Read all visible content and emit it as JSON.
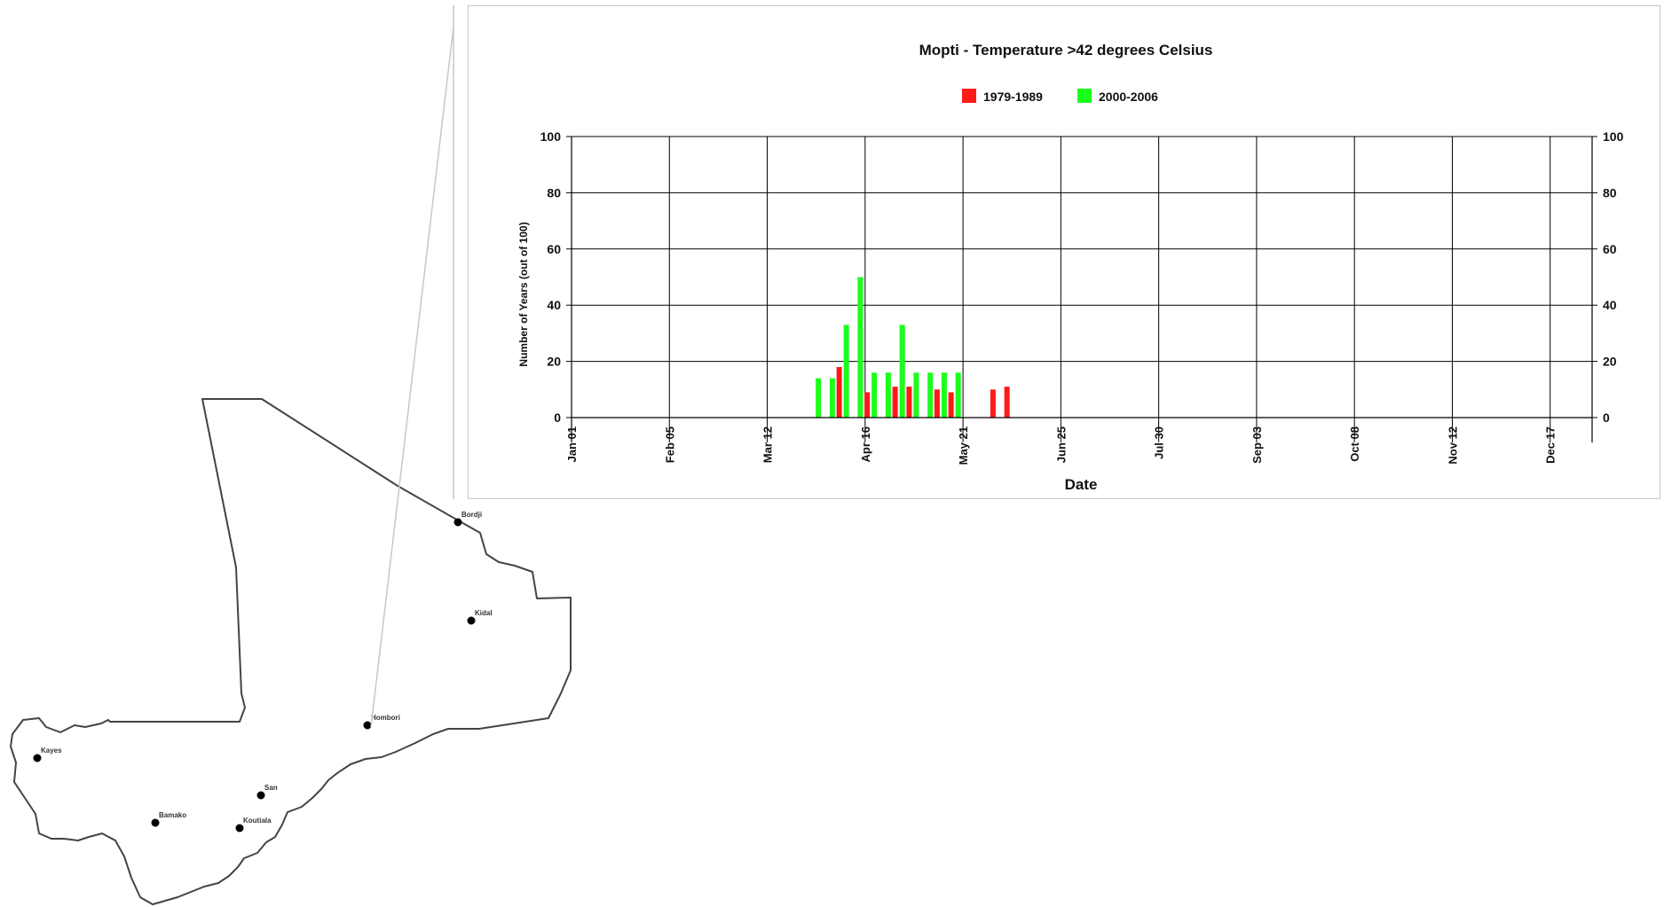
{
  "map": {
    "cities": [
      {
        "name": "Bordji"
      },
      {
        "name": "Kidal"
      },
      {
        "name": "Hombori"
      },
      {
        "name": "Kayes"
      },
      {
        "name": "San"
      },
      {
        "name": "Bamako"
      },
      {
        "name": "Koutiala"
      }
    ]
  },
  "chart_data": {
    "type": "bar",
    "title": "Mopti - Temperature >42 degrees Celsius",
    "xlabel": "Date",
    "ylabel": "Number of Years (out of 100)",
    "ylim": [
      0,
      100
    ],
    "yticks": [
      0,
      20,
      40,
      60,
      80,
      100
    ],
    "xlim": [
      "Jan 01",
      "Dec 31"
    ],
    "xticks": [
      "Jan 01",
      "Feb 05",
      "Mar 12",
      "Apr 16",
      "May 21",
      "Jun 25",
      "Jul 30",
      "Sep 03",
      "Oct 08",
      "Nov 12",
      "Dec 17"
    ],
    "grid": true,
    "legend_position": "top",
    "bins": [
      "Mar 29",
      "Apr 03",
      "Apr 08",
      "Apr 13",
      "Apr 18",
      "Apr 23",
      "Apr 28",
      "May 03",
      "May 08",
      "May 13",
      "May 18",
      "Jun 02",
      "Jun 07"
    ],
    "series": [
      {
        "name": "1979-1989",
        "color": "#ff1a1a",
        "values": [
          0,
          0,
          18,
          0,
          9,
          0,
          11,
          11,
          0,
          10,
          9,
          10,
          11
        ]
      },
      {
        "name": "2000-2006",
        "color": "#1aff1a",
        "values": [
          14,
          14,
          33,
          50,
          16,
          16,
          33,
          16,
          16,
          16,
          16,
          0,
          0
        ]
      }
    ]
  }
}
